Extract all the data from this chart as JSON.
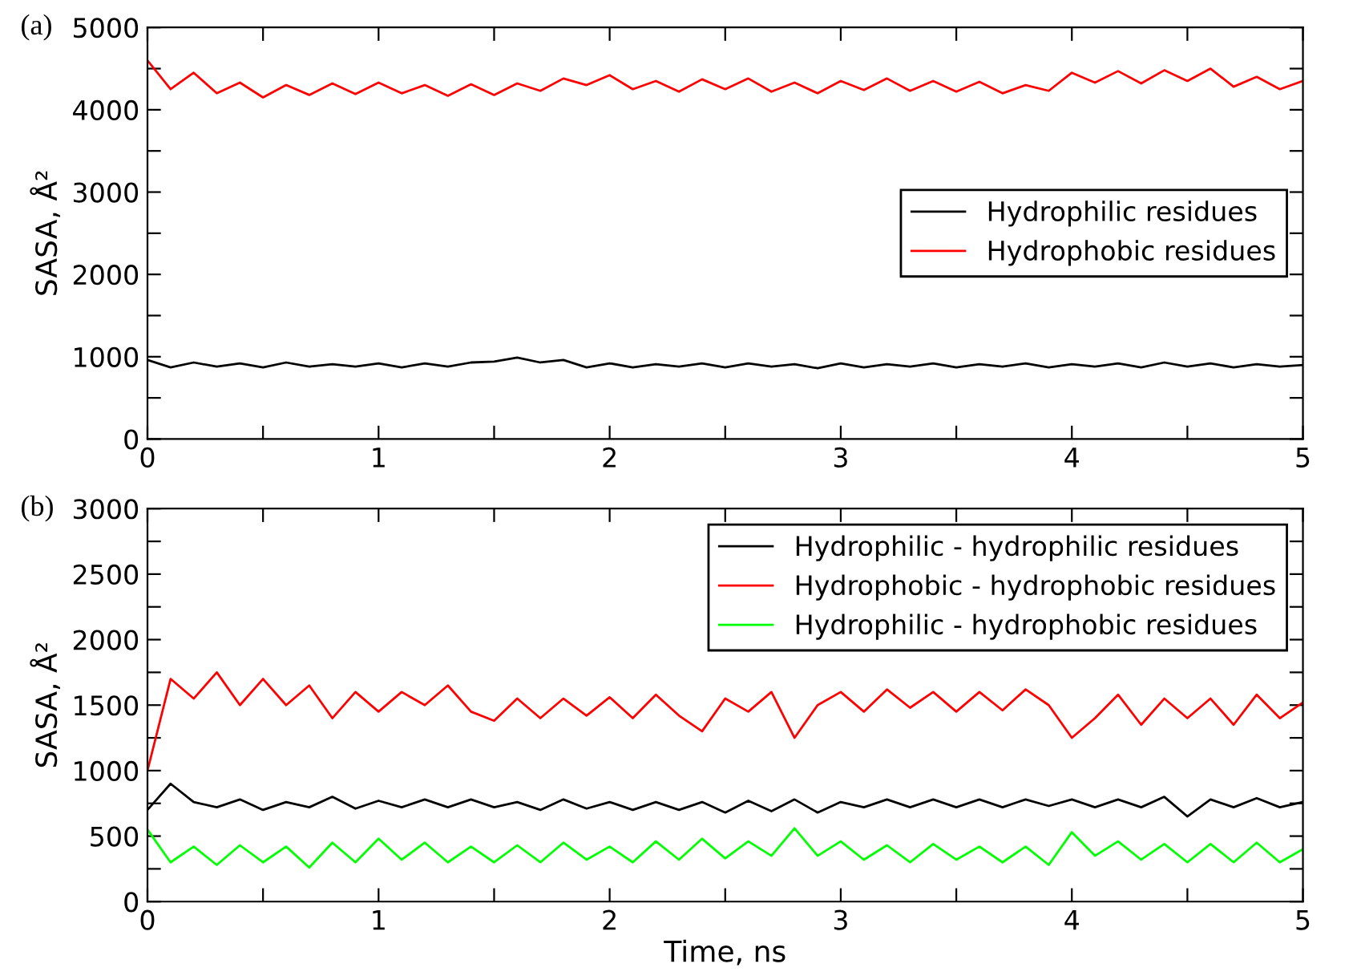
{
  "chart_data": [
    {
      "type": "line",
      "title": "(a)",
      "ylabel": "SASA, Å²",
      "x": [
        0,
        0.1,
        0.2,
        0.3,
        0.4,
        0.5,
        0.6,
        0.7,
        0.8,
        0.9,
        1,
        1.1,
        1.2,
        1.3,
        1.4,
        1.5,
        1.6,
        1.7,
        1.8,
        1.9,
        2,
        2.1,
        2.2,
        2.3,
        2.4,
        2.5,
        2.6,
        2.7,
        2.8,
        2.9,
        3,
        3.1,
        3.2,
        3.3,
        3.4,
        3.5,
        3.6,
        3.7,
        3.8,
        3.9,
        4,
        4.1,
        4.2,
        4.3,
        4.4,
        4.5,
        4.6,
        4.7,
        4.8,
        4.9,
        5
      ],
      "series": [
        {
          "name": "Hydrophilic residues",
          "color": "#000000",
          "values": [
            960,
            870,
            930,
            880,
            920,
            870,
            930,
            880,
            910,
            880,
            920,
            870,
            920,
            880,
            930,
            940,
            990,
            930,
            960,
            870,
            920,
            870,
            910,
            880,
            920,
            870,
            920,
            880,
            910,
            860,
            920,
            870,
            910,
            880,
            920,
            870,
            910,
            880,
            920,
            870,
            910,
            880,
            920,
            870,
            930,
            880,
            920,
            870,
            910,
            880,
            900
          ]
        },
        {
          "name": "Hydrophobic residues",
          "color": "#ff0000",
          "values": [
            4600,
            4250,
            4450,
            4200,
            4330,
            4150,
            4300,
            4180,
            4320,
            4190,
            4330,
            4200,
            4300,
            4170,
            4310,
            4180,
            4320,
            4230,
            4380,
            4300,
            4420,
            4250,
            4350,
            4220,
            4370,
            4250,
            4380,
            4220,
            4330,
            4200,
            4350,
            4240,
            4380,
            4230,
            4350,
            4220,
            4340,
            4200,
            4300,
            4230,
            4450,
            4330,
            4470,
            4320,
            4480,
            4350,
            4500,
            4280,
            4400,
            4250,
            4350
          ]
        }
      ],
      "xlim": [
        0,
        5
      ],
      "ylim": [
        0,
        5000
      ],
      "xticks": [
        0,
        {
          "value": 0.5,
          "label": null
        },
        1,
        {
          "value": 1.5,
          "label": null
        },
        2,
        {
          "value": 2.5,
          "label": null
        },
        3,
        {
          "value": 3.5,
          "label": null
        },
        4,
        {
          "value": 4.5,
          "label": null
        },
        5
      ],
      "yticks": [
        0,
        {
          "value": 500,
          "label": null
        },
        1000,
        {
          "value": 1500,
          "label": null
        },
        2000,
        {
          "value": 2500,
          "label": null
        },
        3000,
        {
          "value": 3500,
          "label": null
        },
        4000,
        {
          "value": 4500,
          "label": null
        },
        5000
      ],
      "legend": "right",
      "grid": false,
      "line_style": "solid",
      "marker": "none"
    },
    {
      "type": "line",
      "title": "(b)",
      "ylabel": "SASA, Å²",
      "xlabel": "Time, ns",
      "x": [
        0,
        0.1,
        0.2,
        0.3,
        0.4,
        0.5,
        0.6,
        0.7,
        0.8,
        0.9,
        1,
        1.1,
        1.2,
        1.3,
        1.4,
        1.5,
        1.6,
        1.7,
        1.8,
        1.9,
        2,
        2.1,
        2.2,
        2.3,
        2.4,
        2.5,
        2.6,
        2.7,
        2.8,
        2.9,
        3,
        3.1,
        3.2,
        3.3,
        3.4,
        3.5,
        3.6,
        3.7,
        3.8,
        3.9,
        4,
        4.1,
        4.2,
        4.3,
        4.4,
        4.5,
        4.6,
        4.7,
        4.8,
        4.9,
        5
      ],
      "series": [
        {
          "name": "Hydrophilic - hydrophilic residues",
          "color": "#000000",
          "values": [
            700,
            900,
            760,
            720,
            780,
            700,
            760,
            720,
            800,
            710,
            770,
            720,
            780,
            720,
            780,
            720,
            760,
            700,
            780,
            710,
            760,
            700,
            760,
            700,
            760,
            680,
            770,
            690,
            780,
            680,
            760,
            720,
            780,
            720,
            780,
            720,
            780,
            720,
            780,
            730,
            780,
            720,
            780,
            720,
            800,
            650,
            780,
            720,
            790,
            720,
            760
          ]
        },
        {
          "name": "Hydrophobic - hydrophobic residues",
          "color": "#ff0000",
          "values": [
            1000,
            1700,
            1550,
            1750,
            1500,
            1700,
            1500,
            1650,
            1400,
            1600,
            1450,
            1600,
            1500,
            1650,
            1450,
            1380,
            1550,
            1400,
            1550,
            1420,
            1560,
            1400,
            1580,
            1420,
            1300,
            1550,
            1450,
            1600,
            1250,
            1500,
            1600,
            1450,
            1620,
            1480,
            1600,
            1450,
            1600,
            1460,
            1620,
            1500,
            1250,
            1400,
            1580,
            1350,
            1550,
            1400,
            1550,
            1350,
            1580,
            1400,
            1520
          ]
        },
        {
          "name": "Hydrophilic - hydrophobic residues",
          "color": "#00ff00",
          "values": [
            550,
            300,
            420,
            280,
            430,
            300,
            420,
            260,
            450,
            300,
            480,
            320,
            450,
            300,
            420,
            300,
            430,
            300,
            450,
            320,
            420,
            300,
            460,
            320,
            480,
            330,
            460,
            350,
            560,
            350,
            460,
            320,
            430,
            300,
            440,
            320,
            420,
            300,
            420,
            280,
            530,
            350,
            460,
            320,
            440,
            300,
            440,
            300,
            450,
            300,
            400
          ]
        }
      ],
      "xlim": [
        0,
        5
      ],
      "ylim": [
        0,
        3000
      ],
      "xticks": [
        0,
        {
          "value": 0.5,
          "label": null
        },
        1,
        {
          "value": 1.5,
          "label": null
        },
        2,
        {
          "value": 2.5,
          "label": null
        },
        3,
        {
          "value": 3.5,
          "label": null
        },
        4,
        {
          "value": 4.5,
          "label": null
        },
        5
      ],
      "yticks": [
        0,
        {
          "value": 250,
          "label": null
        },
        500,
        {
          "value": 750,
          "label": null
        },
        1000,
        {
          "value": 1250,
          "label": null
        },
        1500,
        {
          "value": 1750,
          "label": null
        },
        2000,
        {
          "value": 2250,
          "label": null
        },
        2500,
        {
          "value": 2750,
          "label": null
        },
        3000
      ],
      "legend": "top right",
      "grid": false,
      "line_style": "solid",
      "marker": "none"
    }
  ]
}
